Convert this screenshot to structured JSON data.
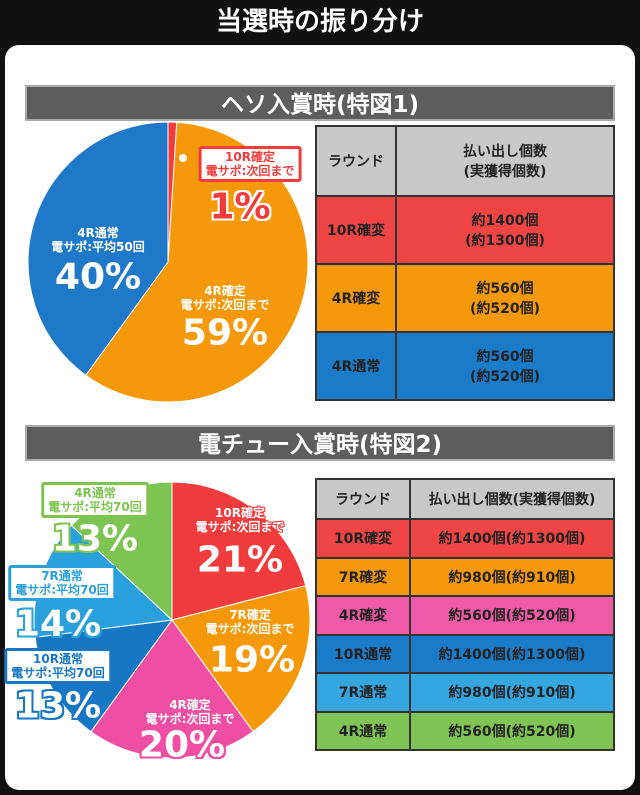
{
  "title": "当選時の振り分け",
  "sections": [
    {
      "heading": "ヘソ入賞時(特図1)",
      "table": {
        "header": [
          "ラウンド",
          "払い出し個数\n(実獲得個数)"
        ],
        "rows": [
          [
            "10R確変",
            "約1400個\n(約1300個)"
          ],
          [
            "4R確変",
            "約560個\n(約520個)"
          ],
          [
            "4R通常",
            "約560個\n(約520個)"
          ]
        ],
        "row_colors": [
          "#f04545",
          "#f5990a",
          "#1a7bc9"
        ]
      }
    },
    {
      "heading": "電チュー入賞時(特図2)",
      "table": {
        "header": [
          "ラウンド",
          "払い出し個数(実獲得個数)"
        ],
        "rows": [
          [
            "10R確変",
            "約1400個(約1300個)"
          ],
          [
            "7R確変",
            "約980個(約910個)"
          ],
          [
            "4R確変",
            "約560個(約520個)"
          ],
          [
            "10R通常",
            "約1400個(約1300個)"
          ],
          [
            "7R通常",
            "約980個(約910個)"
          ],
          [
            "4R通常",
            "約560個(約520個)"
          ]
        ],
        "row_colors": [
          "#f04545",
          "#f5990a",
          "#ee5aa8",
          "#1a7bc9",
          "#36a6e0",
          "#80c455"
        ]
      }
    }
  ],
  "chart_data": [
    {
      "type": "pie",
      "categories": [
        "10R確定\n電サポ:次回まで",
        "4R確定\n電サポ:次回まで",
        "4R通常\n電サポ:平均50回"
      ],
      "values": [
        1,
        59,
        40
      ],
      "value_labels": [
        "1%",
        "59%",
        "40%"
      ],
      "colors": [
        "#f03c3c",
        "#f5990a",
        "#1f78c8"
      ]
    },
    {
      "type": "pie",
      "categories": [
        "10R確定\n電サポ:次回まで",
        "7R確定\n電サポ:次回まで",
        "4R確定\n電サポ:次回まで",
        "10R通常\n電サポ:平均70回",
        "7R通常\n電サポ:平均70回",
        "4R通常\n電サポ:平均70回"
      ],
      "values": [
        21,
        19,
        20,
        13,
        14,
        13
      ],
      "value_labels": [
        "21%",
        "19%",
        "20%",
        "13%",
        "14%",
        "13%"
      ],
      "colors": [
        "#f03c3c",
        "#f5990a",
        "#ee4fa3",
        "#1877c4",
        "#2aa0dc",
        "#7ec452"
      ]
    }
  ]
}
